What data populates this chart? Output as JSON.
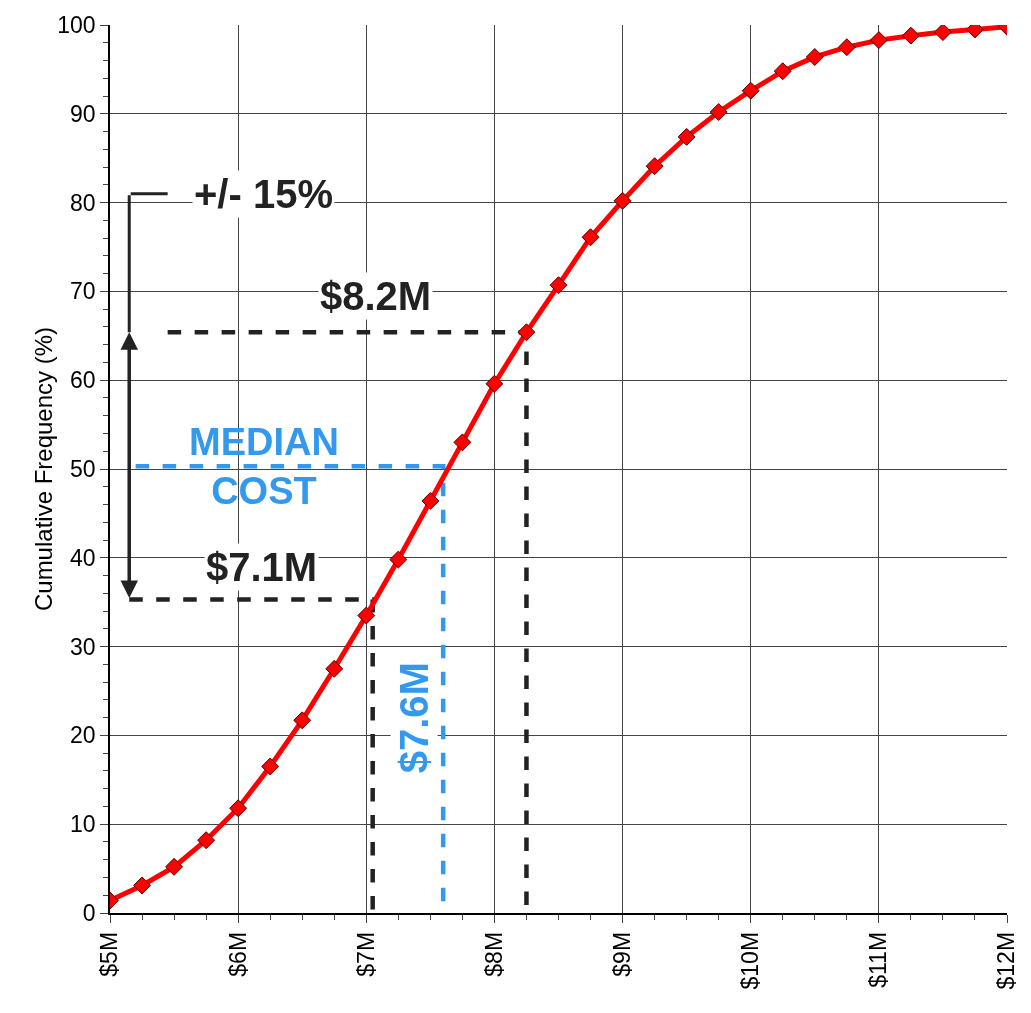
{
  "chart_data": {
    "type": "line",
    "ylabel": "Cumulative Frequency (%)",
    "marker": "diamond",
    "grid": true,
    "xlim": [
      5,
      12
    ],
    "xticks": [
      {
        "value": 5,
        "label": "$5M"
      },
      {
        "value": 6,
        "label": "$6M"
      },
      {
        "value": 7,
        "label": "$7M"
      },
      {
        "value": 8,
        "label": "$8M"
      },
      {
        "value": 9,
        "label": "$9M"
      },
      {
        "value": 10,
        "label": "$10M"
      },
      {
        "value": 11,
        "label": "$11M"
      },
      {
        "value": 12,
        "label": "$12M"
      }
    ],
    "ylim": [
      0,
      100
    ],
    "yticks": [
      0,
      10,
      20,
      30,
      40,
      50,
      60,
      70,
      80,
      90,
      100
    ],
    "x": [
      5,
      5.25,
      5.5,
      5.75,
      6,
      6.25,
      6.5,
      6.75,
      7,
      7.25,
      7.5,
      7.75,
      8,
      8.25,
      8.5,
      8.75,
      9,
      9.25,
      9.5,
      9.75,
      10,
      10.25,
      10.5,
      10.75,
      11,
      11.25,
      11.5,
      11.75,
      12
    ],
    "series": [
      {
        "color": "#ff0000",
        "values": [
          1.4,
          3.1,
          5.2,
          8.2,
          11.8,
          16.5,
          21.7,
          27.5,
          33.5,
          39.8,
          46.4,
          53,
          59.6,
          65.4,
          70.7,
          76.1,
          80.2,
          84.1,
          87.4,
          90.2,
          92.6,
          94.8,
          96.4,
          97.5,
          98.3,
          98.8,
          99.2,
          99.5,
          99.8
        ]
      },
      {
        "type": "line",
        "marker": "none",
        "line_style": "dashed",
        "color": "#222222",
        "x": [
          5.45,
          8.25,
          8.25
        ],
        "values": [
          65.4,
          65.4,
          0
        ]
      },
      {
        "type": "line",
        "marker": "none",
        "line_style": "dashed",
        "color": "#3399ee",
        "x": [
          5.2,
          7.6,
          7.6
        ],
        "values": [
          50.3,
          50.3,
          0
        ]
      },
      {
        "type": "line",
        "marker": "none",
        "line_style": "dashed",
        "color": "#222222",
        "x": [
          5.15,
          7.05,
          7.05
        ],
        "values": [
          35.3,
          35.3,
          0
        ]
      }
    ],
    "annotations": [
      "+/- 15%",
      "$8.2M",
      "MEDIAN COST",
      "$7.1M",
      "$7.6M"
    ]
  }
}
